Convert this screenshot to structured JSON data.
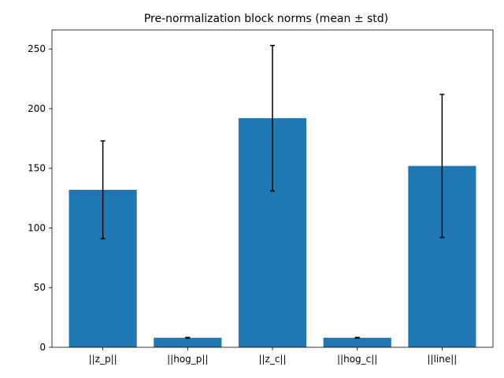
{
  "chart_data": {
    "type": "bar",
    "title": "Pre-normalization block norms (mean ± std)",
    "xlabel": "",
    "ylabel": "",
    "categories": [
      "||z_p||",
      "||hog_p||",
      "||z_c||",
      "||hog_c||",
      "||line||"
    ],
    "values": [
      132,
      8,
      192,
      8,
      152
    ],
    "errors": [
      41,
      0.3,
      61,
      0.3,
      60
    ],
    "ylim": [
      0,
      266
    ],
    "yticks": [
      0,
      50,
      100,
      150,
      200,
      250
    ],
    "grid": false,
    "bar_color": "#1f77b4",
    "error_color": "#000000"
  }
}
